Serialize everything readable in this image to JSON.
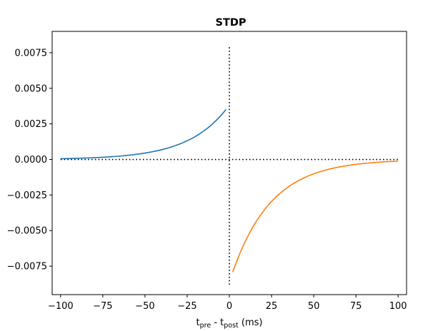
{
  "chart_data": {
    "type": "line",
    "title": "STDP",
    "xlabel": {
      "main": "t",
      "sub1": "pre",
      "mid": " - t",
      "sub2": "post",
      "tail": " (ms)"
    },
    "ylabel": "",
    "xlim": [
      -105,
      105
    ],
    "ylim": [
      -0.0095,
      0.009
    ],
    "x_ticks": [
      -100,
      -75,
      -50,
      -25,
      0,
      25,
      50,
      75,
      100
    ],
    "x_tick_labels": [
      "−100",
      "−75",
      "−50",
      "−25",
      "0",
      "25",
      "50",
      "75",
      "100"
    ],
    "y_ticks": [
      -0.0075,
      -0.005,
      -0.0025,
      0.0,
      0.0025,
      0.005,
      0.0075
    ],
    "y_tick_labels": [
      "−0.0075",
      "−0.0050",
      "−0.0025",
      "0.0000",
      "0.0025",
      "0.0050",
      "0.0075"
    ],
    "grid": false,
    "series": [
      {
        "color": "#1f77b4",
        "x": [
          -100,
          -98,
          -96,
          -94,
          -92,
          -90,
          -88,
          -86,
          -84,
          -82,
          -80,
          -78,
          -76,
          -74,
          -72,
          -70,
          -68,
          -66,
          -64,
          -62,
          -60,
          -58,
          -56,
          -54,
          -52,
          -50,
          -48,
          -46,
          -44,
          -42,
          -40,
          -38,
          -36,
          -34,
          -32,
          -30,
          -28,
          -26,
          -24,
          -22,
          -20,
          -18,
          -16,
          -14,
          -12,
          -10,
          -8,
          -6,
          -4,
          -2
        ],
        "y": [
          5.25e-05,
          5.72e-05,
          6.23e-05,
          6.79e-05,
          7.4e-05,
          8.06e-05,
          8.78e-05,
          9.57e-05,
          0.000104,
          0.000114,
          0.000124,
          0.000135,
          0.000147,
          0.00016,
          0.000175,
          0.00019,
          0.000207,
          0.000226,
          0.000246,
          0.000268,
          0.000292,
          0.000318,
          0.000347,
          0.000378,
          0.000411,
          0.000448,
          0.000488,
          0.000532,
          0.00058,
          0.000632,
          0.000688,
          0.00075,
          0.000817,
          0.000891,
          0.00097,
          0.00106,
          0.00115,
          0.00126,
          0.00137,
          0.00149,
          0.00162,
          0.00177,
          0.00193,
          0.0021,
          0.00229,
          0.00249,
          0.00272,
          0.00296,
          0.00322,
          0.00351
        ]
      },
      {
        "color": "#ff7f0e",
        "x": [
          2,
          4,
          6,
          8,
          10,
          12,
          14,
          16,
          18,
          20,
          22,
          24,
          26,
          28,
          30,
          32,
          34,
          36,
          38,
          40,
          42,
          44,
          46,
          48,
          50,
          52,
          54,
          56,
          58,
          60,
          62,
          64,
          66,
          68,
          70,
          72,
          74,
          76,
          78,
          80,
          82,
          84,
          86,
          88,
          90,
          92,
          94,
          96,
          98,
          100
        ],
        "y": [
          -0.00792,
          -0.00727,
          -0.00667,
          -0.00612,
          -0.00562,
          -0.00516,
          -0.00473,
          -0.00434,
          -0.00399,
          -0.00366,
          -0.00336,
          -0.00308,
          -0.00283,
          -0.0026,
          -0.00238,
          -0.00219,
          -0.00201,
          -0.00184,
          -0.00169,
          -0.00155,
          -0.00142,
          -0.00131,
          -0.0012,
          -0.0011,
          -0.00101,
          -0.000927,
          -0.000851,
          -0.000781,
          -0.000717,
          -0.000658,
          -0.000604,
          -0.000554,
          -0.000509,
          -0.000467,
          -0.000428,
          -0.000393,
          -0.000361,
          -0.000331,
          -0.000304,
          -0.000279,
          -0.000256,
          -0.000235,
          -0.000216,
          -0.000198,
          -0.000182,
          -0.000167,
          -0.000153,
          -0.00014,
          -0.000129,
          -0.000118
        ]
      }
    ],
    "reference_lines": [
      {
        "orientation": "horizontal",
        "value": 0,
        "from": -100,
        "to": 100,
        "style": "dotted",
        "color": "#000000"
      },
      {
        "orientation": "vertical",
        "value": 0,
        "from": -0.0088,
        "to": 0.0079,
        "style": "dotted",
        "color": "#000000"
      }
    ]
  }
}
